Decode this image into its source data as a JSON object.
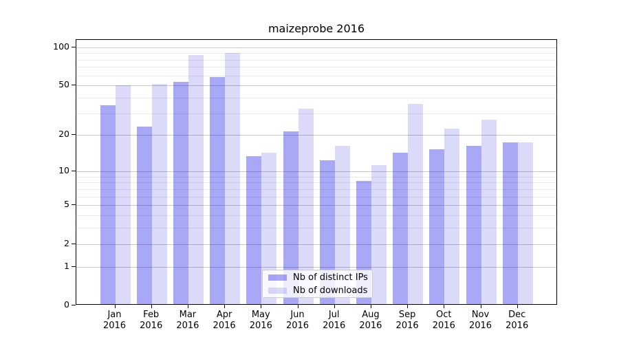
{
  "chart_data": {
    "type": "bar",
    "title": "maizeprobe 2016",
    "categories": [
      [
        "Jan",
        "2016"
      ],
      [
        "Feb",
        "2016"
      ],
      [
        "Mar",
        "2016"
      ],
      [
        "Apr",
        "2016"
      ],
      [
        "May",
        "2016"
      ],
      [
        "Jun",
        "2016"
      ],
      [
        "Jul",
        "2016"
      ],
      [
        "Aug",
        "2016"
      ],
      [
        "Sep",
        "2016"
      ],
      [
        "Oct",
        "2016"
      ],
      [
        "Nov",
        "2016"
      ],
      [
        "Dec",
        "2016"
      ]
    ],
    "series": [
      {
        "name": "Nb of distinct IPs",
        "color": "rgba(0,0,228,0.34)",
        "values": [
          34,
          23,
          52,
          57,
          13,
          21,
          12,
          8,
          14,
          15,
          16,
          17
        ]
      },
      {
        "name": "Nb of downloads",
        "color": "rgba(0,0,212,0.14)",
        "values": [
          49,
          50,
          85,
          88,
          14,
          32,
          16,
          11,
          35,
          22,
          26,
          17
        ]
      }
    ],
    "xlabel": "",
    "ylabel": "",
    "yscale": "log1p",
    "ylim": [
      0,
      114
    ],
    "yticks": [
      {
        "v": 100,
        "label": "100"
      },
      {
        "v": 50,
        "label": "50"
      },
      {
        "v": 20,
        "label": "20"
      },
      {
        "v": 10,
        "label": "10"
      },
      {
        "v": 5,
        "label": "5"
      },
      {
        "v": 2,
        "label": "2"
      },
      {
        "v": 1,
        "label": "1"
      },
      {
        "v": 0,
        "label": "0"
      }
    ],
    "minor_gridlines": [
      3,
      4,
      6,
      7,
      8,
      9,
      30,
      40,
      60,
      70,
      80,
      90
    ],
    "grid": "both",
    "legend_position": "lower center",
    "colors": {
      "grid_major": "#c6c6c6",
      "grid_minor": "#e9e9e9",
      "spine": "#000000",
      "background": "#ffffff",
      "text": "#000000"
    }
  }
}
